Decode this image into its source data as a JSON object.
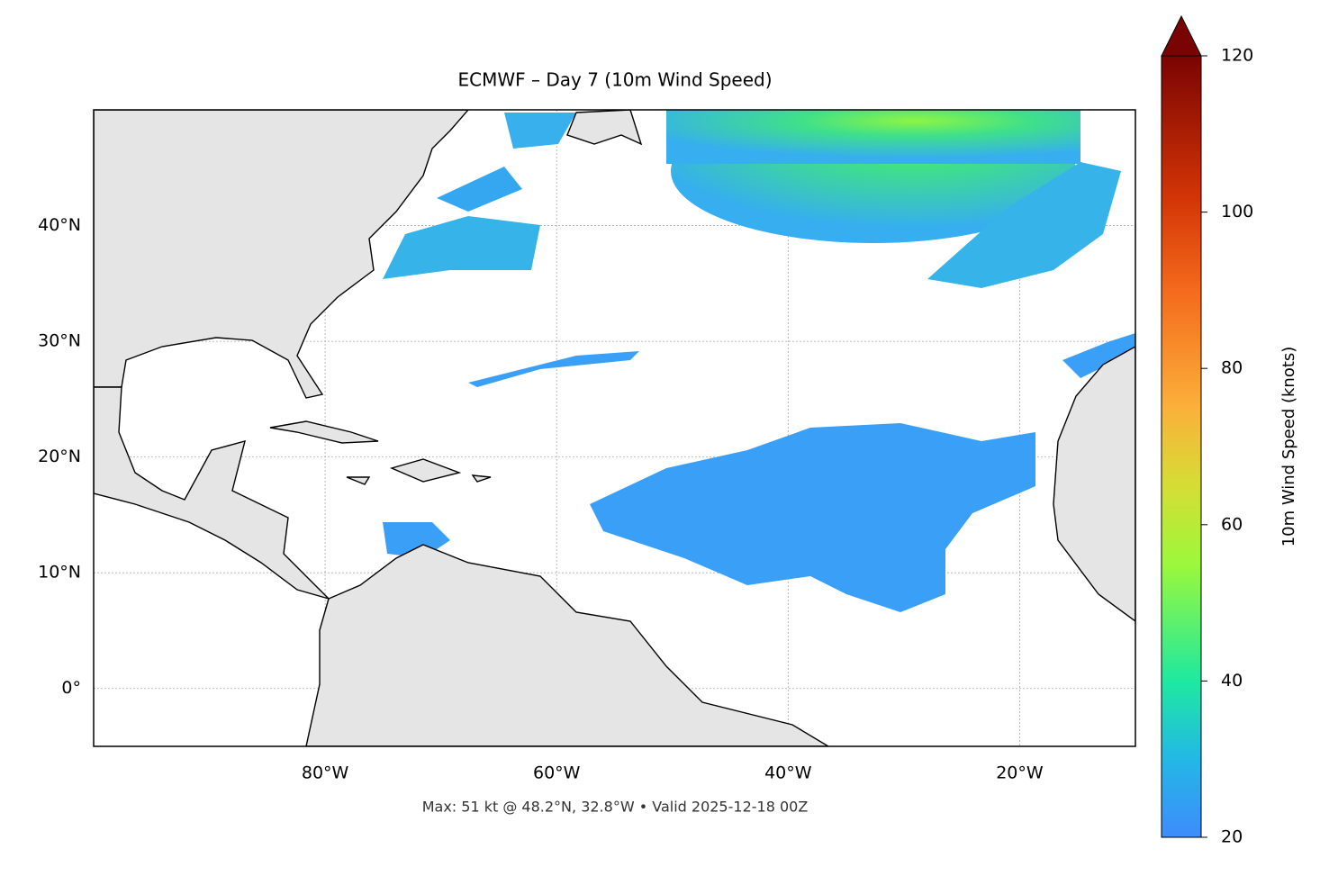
{
  "chart_data": {
    "type": "map",
    "title": "ECMWF – Day 7 (10m Wind Speed)",
    "footnote": "Max: 51 kt @ 48.2°N, 32.8°W • Valid 2025-12-18 00Z",
    "xlim": [
      -100,
      -10
    ],
    "ylim": [
      -5,
      50
    ],
    "xticks": [
      {
        "value": -80,
        "label": "80°W"
      },
      {
        "value": -60,
        "label": "60°W"
      },
      {
        "value": -40,
        "label": "40°W"
      },
      {
        "value": -20,
        "label": "20°W"
      }
    ],
    "yticks": [
      {
        "value": 0,
        "label": "0°"
      },
      {
        "value": 10,
        "label": "10°N"
      },
      {
        "value": 20,
        "label": "20°N"
      },
      {
        "value": 30,
        "label": "30°N"
      },
      {
        "value": 40,
        "label": "40°N"
      }
    ],
    "grid": true,
    "colorbar": {
      "label": "10m Wind Speed (knots)",
      "clim": [
        20,
        120
      ],
      "ticks": [
        20,
        40,
        60,
        80,
        100,
        120
      ]
    }
  }
}
